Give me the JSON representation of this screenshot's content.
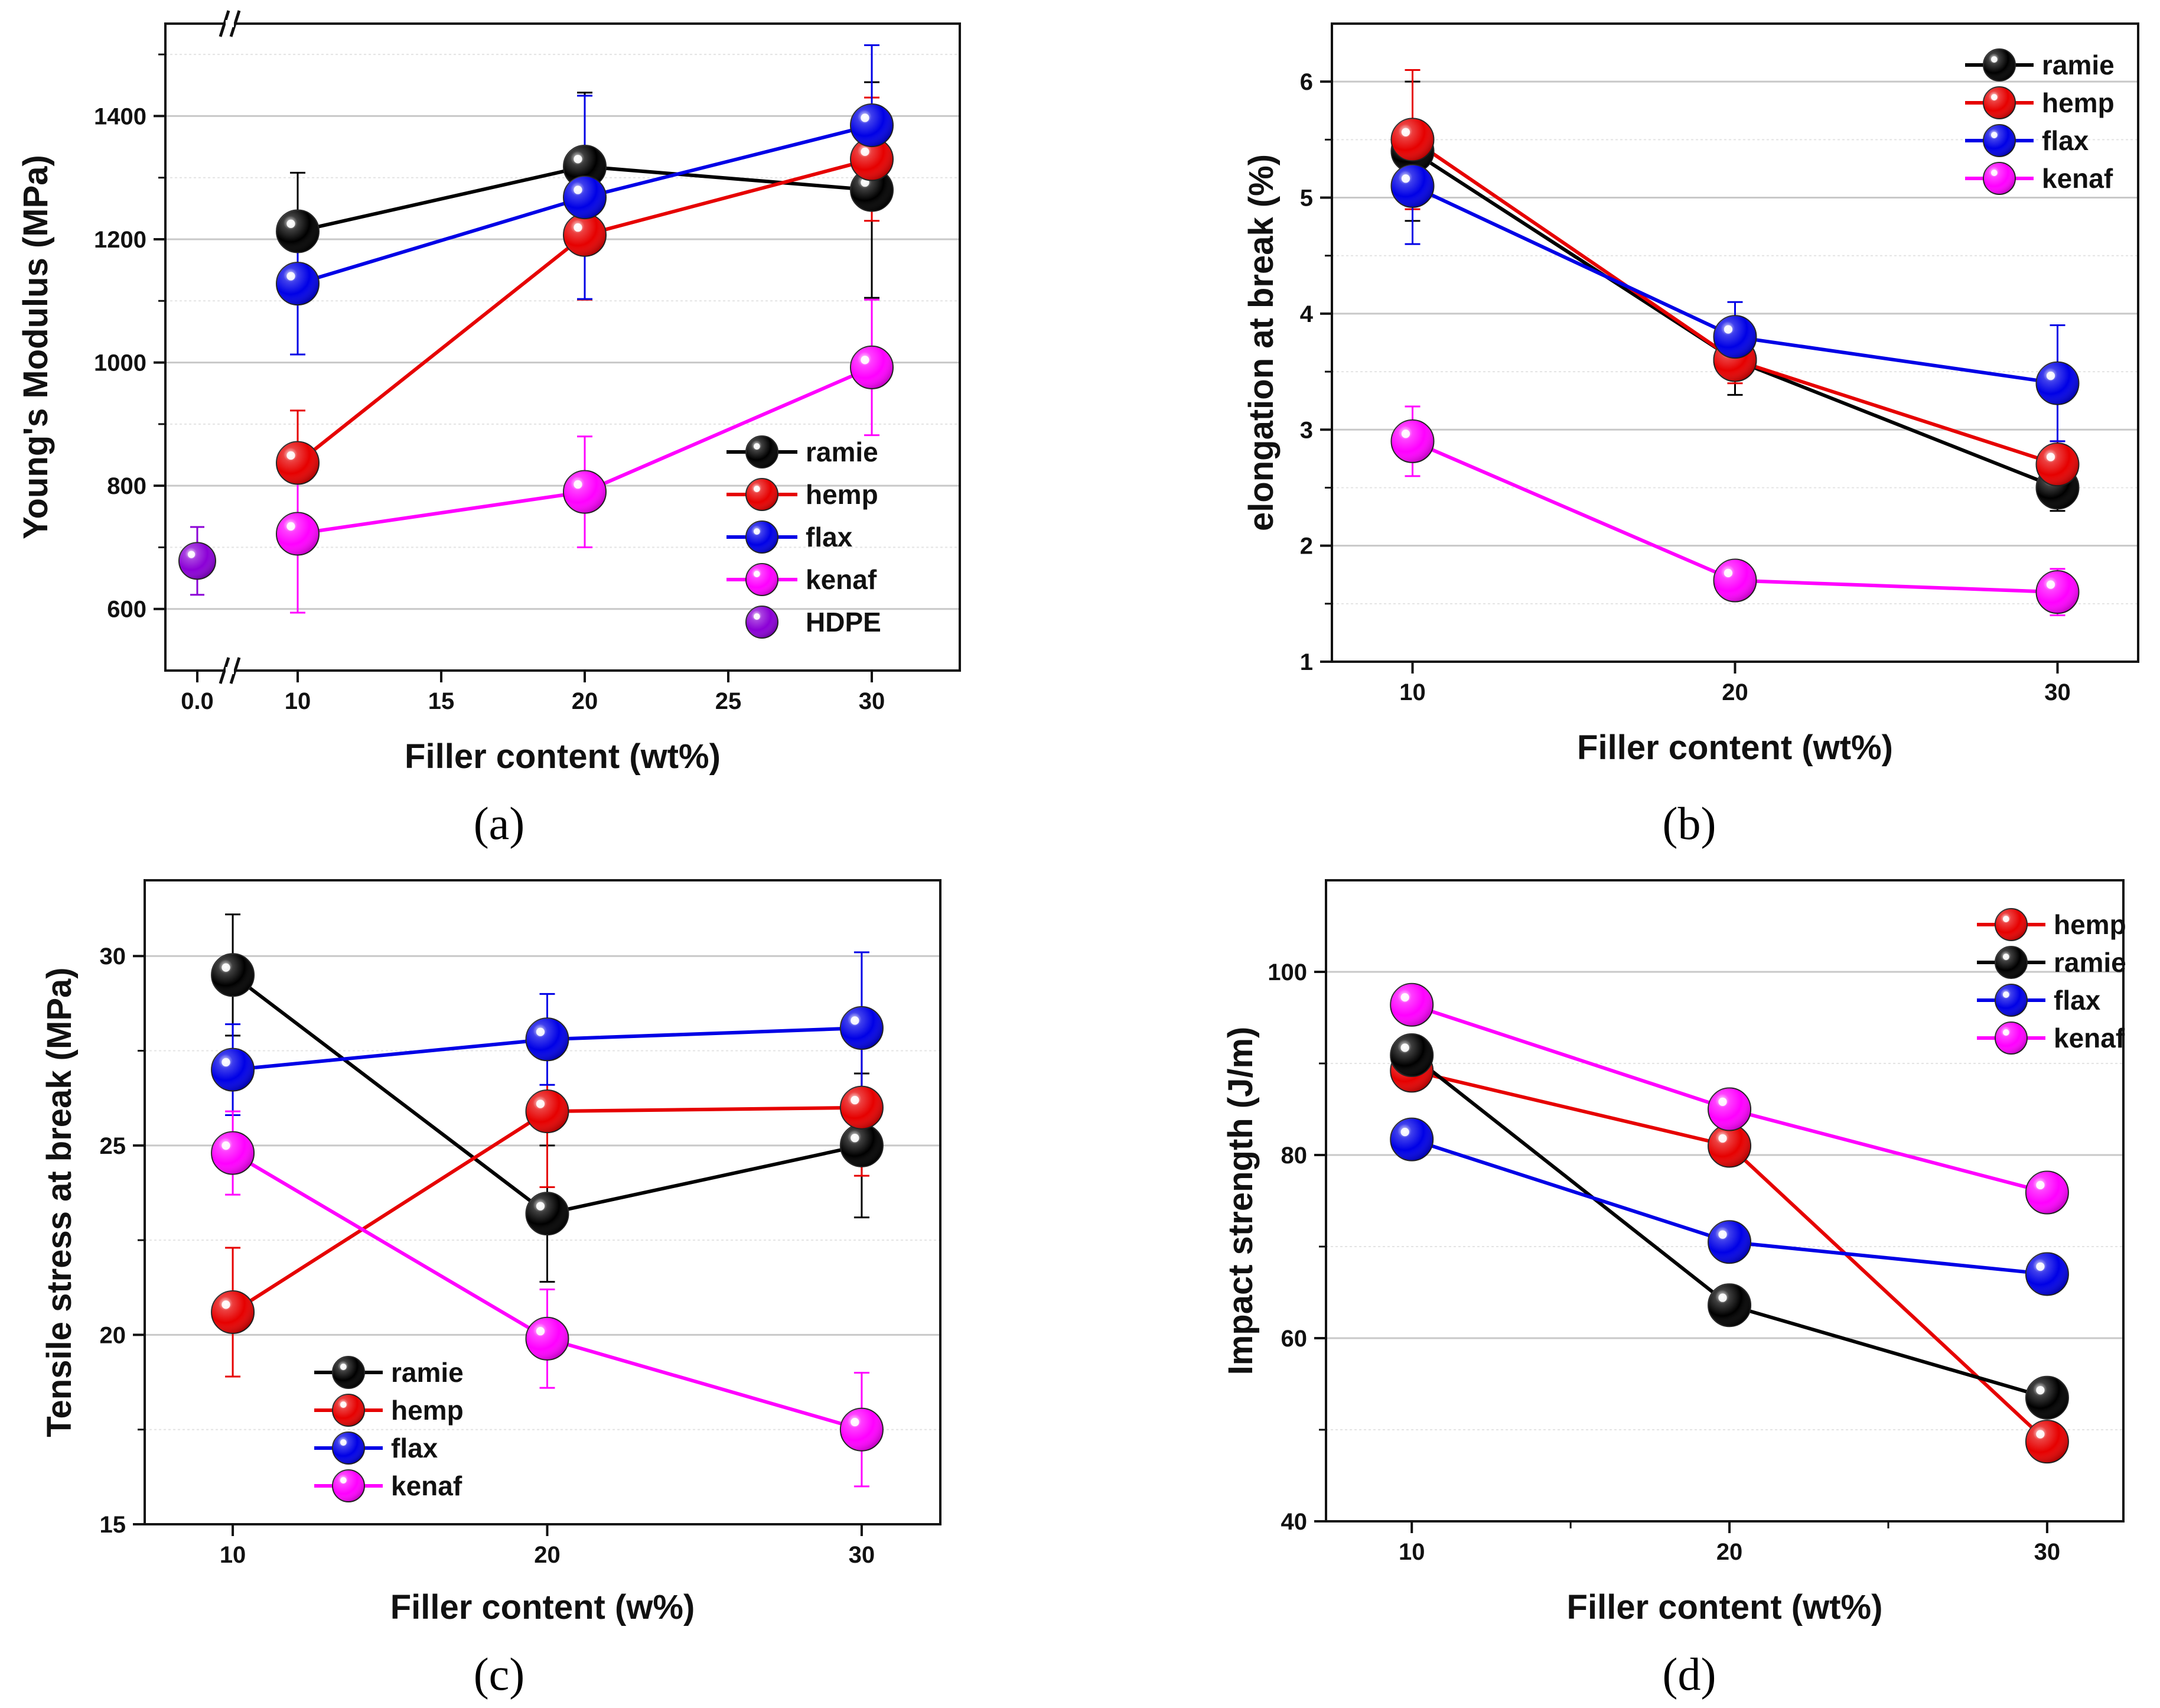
{
  "chart_data": [
    {
      "id": "a",
      "type": "line",
      "caption": "(a)",
      "xlabel": "Filler content (wt%)",
      "ylabel": "Young's Modulus (MPa)",
      "xlim": [
        8,
        33
      ],
      "ylim": [
        500,
        1550
      ],
      "x_ticks": [
        10,
        15,
        20,
        25,
        30
      ],
      "x_tick_labels": [
        "10",
        "15",
        "20",
        "25",
        "30"
      ],
      "y_ticks": [
        600,
        800,
        1000,
        1200,
        1400
      ],
      "y_tick_labels": [
        "600",
        "800",
        "1000",
        "1200",
        "1400"
      ],
      "grid": true,
      "axis_break": true,
      "extra_point": {
        "name": "HDPE",
        "x_label": "0.0",
        "value": 678,
        "err": 55,
        "color": "#8b00d6"
      },
      "legend_position": "bottom-right",
      "series": [
        {
          "name": "ramie",
          "color": "#000000",
          "x": [
            10,
            20,
            30
          ],
          "values": [
            1213,
            1318,
            1280
          ],
          "errors": [
            95,
            120,
            175
          ]
        },
        {
          "name": "hemp",
          "color": "#e60000",
          "x": [
            10,
            20,
            30
          ],
          "values": [
            837,
            1207,
            1330
          ],
          "errors": [
            85,
            105,
            100
          ]
        },
        {
          "name": "flax",
          "color": "#0000e6",
          "x": [
            10,
            20,
            30
          ],
          "values": [
            1128,
            1268,
            1385
          ],
          "errors": [
            115,
            165,
            130
          ]
        },
        {
          "name": "kenaf",
          "color": "#ff00ff",
          "x": [
            10,
            20,
            30
          ],
          "values": [
            722,
            790,
            992
          ],
          "errors": [
            128,
            90,
            110
          ]
        }
      ],
      "legend_order": [
        "ramie",
        "hemp",
        "flax",
        "kenaf",
        "HDPE"
      ]
    },
    {
      "id": "b",
      "type": "line",
      "caption": "(b)",
      "xlabel": "Filler content (wt%)",
      "ylabel": "elongation at break (%)",
      "xlim": [
        7.5,
        32.5
      ],
      "ylim": [
        1,
        6.5
      ],
      "x_ticks": [
        10,
        20,
        30
      ],
      "x_tick_labels": [
        "10",
        "20",
        "30"
      ],
      "y_ticks": [
        1,
        2,
        3,
        4,
        5,
        6
      ],
      "y_tick_labels": [
        "1",
        "2",
        "3",
        "4",
        "5",
        "6"
      ],
      "grid": true,
      "legend_position": "top-right",
      "series": [
        {
          "name": "ramie",
          "color": "#000000",
          "x": [
            10,
            20,
            30
          ],
          "values": [
            5.4,
            3.6,
            2.5
          ],
          "errors": [
            0.6,
            0.3,
            0.2
          ]
        },
        {
          "name": "hemp",
          "color": "#e60000",
          "x": [
            10,
            20,
            30
          ],
          "values": [
            5.5,
            3.6,
            2.7
          ],
          "errors": [
            0.6,
            0.2,
            0.2
          ]
        },
        {
          "name": "flax",
          "color": "#0000e6",
          "x": [
            10,
            20,
            30
          ],
          "values": [
            5.1,
            3.8,
            3.4
          ],
          "errors": [
            0.5,
            0.3,
            0.5
          ]
        },
        {
          "name": "kenaf",
          "color": "#ff00ff",
          "x": [
            10,
            20,
            30
          ],
          "values": [
            2.9,
            1.7,
            1.6
          ],
          "errors": [
            0.3,
            0.1,
            0.2
          ]
        }
      ],
      "legend_order": [
        "ramie",
        "hemp",
        "flax",
        "kenaf"
      ]
    },
    {
      "id": "c",
      "type": "line",
      "caption": "(c)",
      "xlabel": "Filler content (w%)",
      "ylabel": "Tensile stress at break (MPa)",
      "xlim": [
        7.2,
        32.5
      ],
      "ylim": [
        15,
        32
      ],
      "x_ticks": [
        10,
        20,
        30
      ],
      "x_tick_labels": [
        "10",
        "20",
        "30"
      ],
      "y_ticks": [
        15,
        20,
        25,
        30
      ],
      "y_tick_labels": [
        "15",
        "20",
        "25",
        "30"
      ],
      "grid": true,
      "legend_position": "bottom-left",
      "series": [
        {
          "name": "ramie",
          "color": "#000000",
          "x": [
            10,
            20,
            30
          ],
          "values": [
            29.5,
            23.2,
            25.0
          ],
          "errors": [
            1.6,
            1.8,
            1.9
          ]
        },
        {
          "name": "hemp",
          "color": "#e60000",
          "x": [
            10,
            20,
            30
          ],
          "values": [
            20.6,
            25.9,
            26.0
          ],
          "errors": [
            1.7,
            2.0,
            1.8
          ]
        },
        {
          "name": "flax",
          "color": "#0000e6",
          "x": [
            10,
            20,
            30
          ],
          "values": [
            27.0,
            27.8,
            28.1
          ],
          "errors": [
            1.2,
            1.2,
            2.0
          ]
        },
        {
          "name": "kenaf",
          "color": "#ff00ff",
          "x": [
            10,
            20,
            30
          ],
          "values": [
            24.8,
            19.9,
            17.5
          ],
          "errors": [
            1.1,
            1.3,
            1.5
          ]
        }
      ],
      "legend_order": [
        "ramie",
        "hemp",
        "flax",
        "kenaf"
      ]
    },
    {
      "id": "d",
      "type": "line",
      "caption": "(d)",
      "xlabel": "Filler content (wt%)",
      "ylabel": "Impact strength (J/m)",
      "xlim": [
        7.3,
        32.4
      ],
      "ylim": [
        40,
        110
      ],
      "x_ticks": [
        10,
        20,
        30
      ],
      "x_tick_labels": [
        "10",
        "20",
        "30"
      ],
      "x_minor_ticks": [
        15,
        25
      ],
      "y_ticks": [
        40,
        60,
        80,
        100
      ],
      "y_tick_labels": [
        "40",
        "60",
        "80",
        "100"
      ],
      "grid": true,
      "legend_position": "top-right",
      "series": [
        {
          "name": "hemp",
          "color": "#e60000",
          "x": [
            10,
            20,
            30
          ],
          "values": [
            89.2,
            81.0,
            48.7
          ],
          "errors": [
            0,
            0,
            0
          ]
        },
        {
          "name": "ramie",
          "color": "#000000",
          "x": [
            10,
            20,
            30
          ],
          "values": [
            90.9,
            63.6,
            53.5
          ],
          "errors": [
            0,
            0,
            0
          ]
        },
        {
          "name": "flax",
          "color": "#0000e6",
          "x": [
            10,
            20,
            30
          ],
          "values": [
            81.7,
            70.5,
            67.0
          ],
          "errors": [
            0,
            0,
            0
          ]
        },
        {
          "name": "kenaf",
          "color": "#ff00ff",
          "x": [
            10,
            20,
            30
          ],
          "values": [
            96.4,
            85.0,
            75.9
          ],
          "errors": [
            0,
            0,
            0
          ]
        }
      ],
      "legend_order": [
        "hemp",
        "ramie",
        "flax",
        "kenaf"
      ]
    }
  ]
}
